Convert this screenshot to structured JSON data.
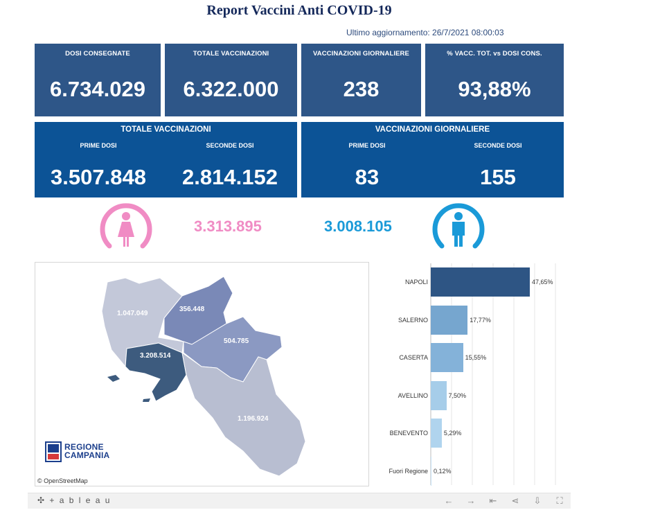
{
  "title": "Report Vaccini Anti COVID-19",
  "last_update": "Ultimo aggiornamento: 26/7/2021 08:00:03",
  "kpis": [
    {
      "label": "DOSI  CONSEGNATE",
      "value": "6.734.029"
    },
    {
      "label": "TOTALE VACCINAZIONI",
      "value": "6.322.000"
    },
    {
      "label": "VACCINAZIONI GIORNALIERE",
      "value": "238"
    },
    {
      "label": "% VACC. TOT. vs DOSI CONS.",
      "value": "93,88%"
    }
  ],
  "totale": {
    "title": "TOTALE VACCINAZIONI",
    "prime_label": "PRIME DOSI",
    "prime_value": "3.507.848",
    "seconde_label": "SECONDE DOSI",
    "seconde_value": "2.814.152"
  },
  "giornaliere": {
    "title": "VACCINAZIONI GIORNALIERE",
    "prime_label": "PRIME DOSI",
    "prime_value": "83",
    "seconde_label": "SECONDE DOSI",
    "seconde_value": "155"
  },
  "gender": {
    "female_value": "3.313.895",
    "female_color": "#f08cc4",
    "male_value": "3.008.105",
    "male_color": "#1a9ad8",
    "female_icon": "female-person-icon",
    "male_icon": "male-person-icon"
  },
  "map": {
    "provinces": [
      {
        "name": "Caserta",
        "label": "1.047.049"
      },
      {
        "name": "Benevento",
        "label": "356.448"
      },
      {
        "name": "Avellino",
        "label": "504.785"
      },
      {
        "name": "Napoli",
        "label": "3.208.514"
      },
      {
        "name": "Salerno",
        "label": "1.196.924"
      }
    ],
    "attribution": "© OpenStreetMap",
    "logo_line1": "REGIONE",
    "logo_line2": "CAMPANIA"
  },
  "chart_data": {
    "type": "bar",
    "orientation": "horizontal",
    "categories": [
      "NAPOLI",
      "SALERNO",
      "CASERTA",
      "AVELLINO",
      "BENEVENTO",
      "Fuori Regione"
    ],
    "values": [
      47.65,
      17.77,
      15.55,
      7.5,
      5.29,
      0.12
    ],
    "value_labels": [
      "47,65%",
      "17,77%",
      "15,55%",
      "7,50%",
      "5,29%",
      "0,12%"
    ],
    "colors": [
      "#2e5584",
      "#76a6cf",
      "#84b2d9",
      "#a6cde9",
      "#b0d4ee",
      "#c6e0f3"
    ],
    "xlim": [
      0,
      60
    ],
    "grid": true
  },
  "toolbar": {
    "brand": "+ a b l e a u",
    "buttons": [
      "undo-icon",
      "redo-icon",
      "revert-icon",
      "share-icon",
      "download-icon",
      "fullscreen-icon"
    ]
  }
}
